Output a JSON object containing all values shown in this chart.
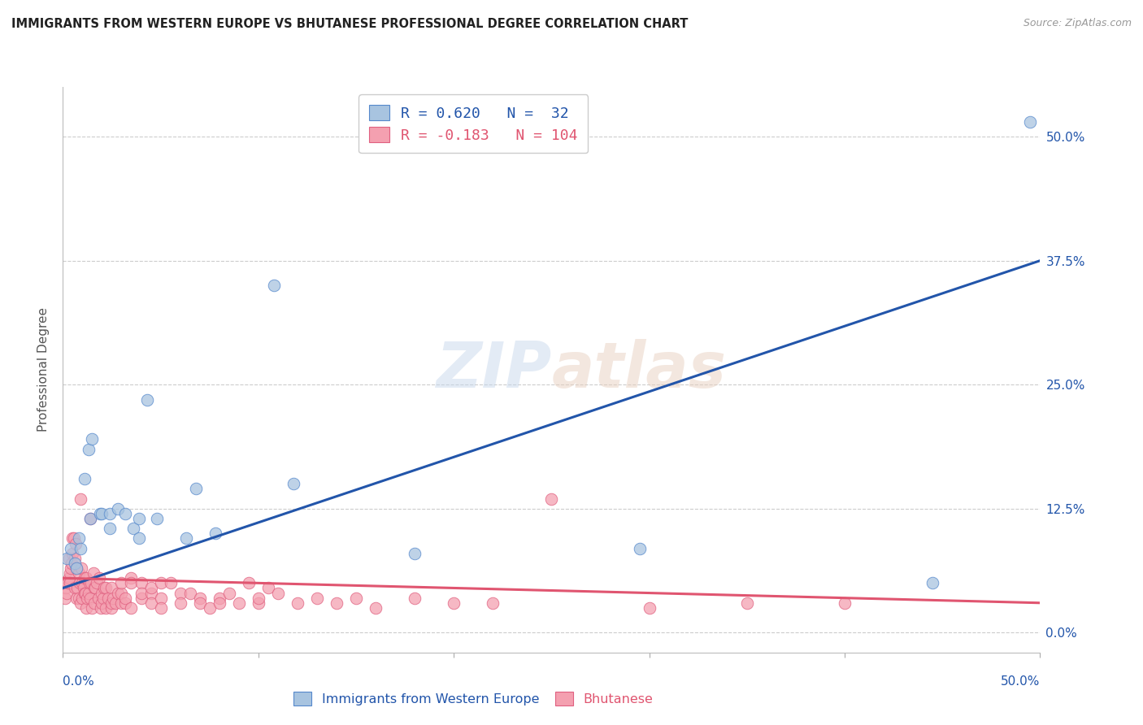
{
  "title": "IMMIGRANTS FROM WESTERN EUROPE VS BHUTANESE PROFESSIONAL DEGREE CORRELATION CHART",
  "source": "Source: ZipAtlas.com",
  "ylabel": "Professional Degree",
  "ytick_values": [
    0.0,
    12.5,
    25.0,
    37.5,
    50.0
  ],
  "xlim": [
    0.0,
    50.0
  ],
  "ylim": [
    -2.0,
    55.0
  ],
  "legend": {
    "blue_R": "0.620",
    "blue_N": "32",
    "pink_R": "-0.183",
    "pink_N": "104"
  },
  "blue_scatter": [
    [
      0.2,
      7.5
    ],
    [
      0.4,
      8.5
    ],
    [
      0.6,
      7.0
    ],
    [
      0.7,
      6.5
    ],
    [
      0.8,
      9.5
    ],
    [
      0.9,
      8.5
    ],
    [
      1.1,
      15.5
    ],
    [
      1.3,
      18.5
    ],
    [
      1.4,
      11.5
    ],
    [
      1.5,
      19.5
    ],
    [
      1.9,
      12.0
    ],
    [
      2.0,
      12.0
    ],
    [
      2.4,
      12.0
    ],
    [
      2.4,
      10.5
    ],
    [
      2.8,
      12.5
    ],
    [
      3.2,
      12.0
    ],
    [
      3.6,
      10.5
    ],
    [
      3.9,
      9.5
    ],
    [
      3.9,
      11.5
    ],
    [
      4.3,
      23.5
    ],
    [
      4.8,
      11.5
    ],
    [
      6.3,
      9.5
    ],
    [
      6.8,
      14.5
    ],
    [
      7.8,
      10.0
    ],
    [
      10.8,
      35.0
    ],
    [
      11.8,
      15.0
    ],
    [
      18.0,
      8.0
    ],
    [
      29.5,
      8.5
    ],
    [
      44.5,
      5.0
    ],
    [
      49.5,
      51.5
    ]
  ],
  "pink_scatter": [
    [
      0.1,
      3.5
    ],
    [
      0.15,
      4.5
    ],
    [
      0.2,
      4.0
    ],
    [
      0.25,
      5.0
    ],
    [
      0.3,
      5.5
    ],
    [
      0.3,
      7.5
    ],
    [
      0.35,
      6.0
    ],
    [
      0.35,
      5.0
    ],
    [
      0.4,
      6.5
    ],
    [
      0.45,
      7.0
    ],
    [
      0.5,
      8.0
    ],
    [
      0.5,
      9.5
    ],
    [
      0.55,
      9.5
    ],
    [
      0.6,
      7.5
    ],
    [
      0.6,
      4.5
    ],
    [
      0.65,
      9.0
    ],
    [
      0.7,
      6.5
    ],
    [
      0.7,
      3.5
    ],
    [
      0.75,
      4.5
    ],
    [
      0.8,
      3.5
    ],
    [
      0.8,
      6.0
    ],
    [
      0.85,
      5.0
    ],
    [
      0.9,
      3.0
    ],
    [
      0.9,
      13.5
    ],
    [
      0.95,
      6.5
    ],
    [
      1.0,
      5.0
    ],
    [
      1.0,
      3.5
    ],
    [
      1.05,
      4.5
    ],
    [
      1.1,
      5.5
    ],
    [
      1.1,
      4.0
    ],
    [
      1.15,
      4.0
    ],
    [
      1.2,
      5.5
    ],
    [
      1.2,
      2.5
    ],
    [
      1.25,
      3.5
    ],
    [
      1.3,
      4.0
    ],
    [
      1.35,
      5.0
    ],
    [
      1.4,
      3.5
    ],
    [
      1.4,
      11.5
    ],
    [
      1.45,
      5.0
    ],
    [
      1.5,
      2.5
    ],
    [
      1.55,
      6.0
    ],
    [
      1.6,
      4.5
    ],
    [
      1.6,
      3.0
    ],
    [
      1.65,
      4.5
    ],
    [
      1.75,
      5.0
    ],
    [
      1.8,
      3.5
    ],
    [
      1.85,
      5.5
    ],
    [
      1.95,
      2.5
    ],
    [
      2.0,
      3.0
    ],
    [
      2.0,
      4.0
    ],
    [
      2.05,
      3.5
    ],
    [
      2.1,
      4.5
    ],
    [
      2.2,
      4.5
    ],
    [
      2.2,
      2.5
    ],
    [
      2.3,
      3.5
    ],
    [
      2.5,
      2.5
    ],
    [
      2.5,
      4.5
    ],
    [
      2.5,
      3.0
    ],
    [
      2.55,
      3.5
    ],
    [
      2.7,
      3.0
    ],
    [
      2.8,
      4.0
    ],
    [
      3.0,
      3.0
    ],
    [
      3.0,
      4.0
    ],
    [
      3.0,
      5.0
    ],
    [
      3.2,
      3.0
    ],
    [
      3.2,
      3.5
    ],
    [
      3.5,
      5.5
    ],
    [
      3.5,
      5.0
    ],
    [
      3.5,
      2.5
    ],
    [
      4.0,
      5.0
    ],
    [
      4.0,
      3.5
    ],
    [
      4.0,
      4.0
    ],
    [
      4.5,
      4.0
    ],
    [
      4.5,
      3.0
    ],
    [
      4.5,
      4.5
    ],
    [
      5.0,
      3.5
    ],
    [
      5.0,
      5.0
    ],
    [
      5.0,
      2.5
    ],
    [
      5.5,
      5.0
    ],
    [
      6.0,
      4.0
    ],
    [
      6.0,
      3.0
    ],
    [
      6.5,
      4.0
    ],
    [
      7.0,
      3.5
    ],
    [
      7.0,
      3.0
    ],
    [
      7.5,
      2.5
    ],
    [
      8.0,
      3.5
    ],
    [
      8.0,
      3.0
    ],
    [
      8.5,
      4.0
    ],
    [
      9.0,
      3.0
    ],
    [
      9.5,
      5.0
    ],
    [
      10.0,
      3.0
    ],
    [
      10.0,
      3.5
    ],
    [
      10.5,
      4.5
    ],
    [
      11.0,
      4.0
    ],
    [
      12.0,
      3.0
    ],
    [
      13.0,
      3.5
    ],
    [
      14.0,
      3.0
    ],
    [
      15.0,
      3.5
    ],
    [
      16.0,
      2.5
    ],
    [
      18.0,
      3.5
    ],
    [
      20.0,
      3.0
    ],
    [
      22.0,
      3.0
    ],
    [
      25.0,
      13.5
    ],
    [
      30.0,
      2.5
    ],
    [
      35.0,
      3.0
    ],
    [
      40.0,
      3.0
    ]
  ],
  "blue_line_x": [
    0.0,
    50.0
  ],
  "blue_line_y": [
    4.5,
    37.5
  ],
  "pink_line_x": [
    0.0,
    50.0
  ],
  "pink_line_y": [
    5.5,
    3.0
  ],
  "blue_fill_color": "#A8C4E0",
  "pink_fill_color": "#F4A0B0",
  "blue_edge_color": "#5588CC",
  "pink_edge_color": "#E06080",
  "blue_line_color": "#2255AA",
  "pink_line_color": "#E05570",
  "watermark_zip": "ZIP",
  "watermark_atlas": "atlas",
  "background_color": "#FFFFFF",
  "grid_color": "#CCCCCC"
}
